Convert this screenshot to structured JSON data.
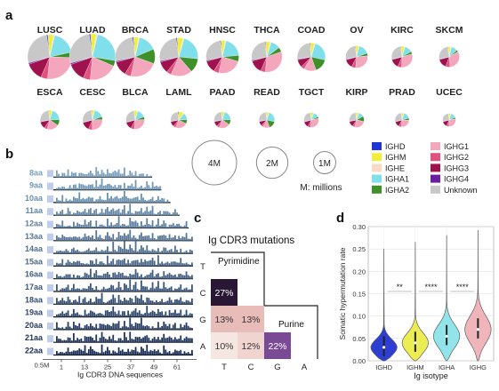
{
  "panels": {
    "a": "a",
    "b": "b",
    "c": "c",
    "d": "d"
  },
  "colors": {
    "IGHD": "#1f35d6",
    "IGHM": "#f0ee3a",
    "IGHE": "#f7d9c4",
    "IGHA1": "#7fe0ec",
    "IGHA2": "#3f8f2a",
    "IGHG1": "#f4a6bd",
    "IGHG2": "#e0527f",
    "IGHG3": "#a0124e",
    "IGHG4": "#6a1fa3",
    "Unknown": "#c8c8c8"
  },
  "panel_a": {
    "row1": [
      {
        "name": "LUSC",
        "size": 4.0,
        "fracs": {
          "IGHD": 0.01,
          "IGHM": 0.04,
          "IGHE": 0.01,
          "IGHA1": 0.18,
          "IGHA2": 0.04,
          "IGHG1": 0.26,
          "IGHG2": 0.05,
          "IGHG3": 0.13,
          "IGHG4": 0.01,
          "Unknown": 0.27
        }
      },
      {
        "name": "LUAD",
        "size": 4.3,
        "fracs": {
          "IGHD": 0.01,
          "IGHM": 0.04,
          "IGHE": 0.01,
          "IGHA1": 0.24,
          "IGHA2": 0.04,
          "IGHG1": 0.2,
          "IGHG2": 0.05,
          "IGHG3": 0.13,
          "IGHG4": 0.01,
          "Unknown": 0.27
        }
      },
      {
        "name": "BRCA",
        "size": 3.2,
        "fracs": {
          "IGHD": 0.01,
          "IGHM": 0.04,
          "IGHE": 0.01,
          "IGHA1": 0.15,
          "IGHA2": 0.12,
          "IGHG1": 0.23,
          "IGHG2": 0.05,
          "IGHG3": 0.12,
          "IGHG4": 0.01,
          "Unknown": 0.26
        }
      },
      {
        "name": "STAD",
        "size": 3.0,
        "fracs": {
          "IGHD": 0.01,
          "IGHM": 0.05,
          "IGHE": 0.01,
          "IGHA1": 0.22,
          "IGHA2": 0.12,
          "IGHG1": 0.18,
          "IGHG2": 0.04,
          "IGHG3": 0.1,
          "IGHG4": 0.01,
          "Unknown": 0.26
        }
      },
      {
        "name": "HNSC",
        "size": 2.2,
        "fracs": {
          "IGHD": 0.01,
          "IGHM": 0.04,
          "IGHE": 0.01,
          "IGHA1": 0.2,
          "IGHA2": 0.06,
          "IGHG1": 0.24,
          "IGHG2": 0.05,
          "IGHG3": 0.12,
          "IGHG4": 0.01,
          "Unknown": 0.26
        }
      },
      {
        "name": "THCA",
        "size": 1.9,
        "fracs": {
          "IGHD": 0.01,
          "IGHM": 0.05,
          "IGHE": 0.01,
          "IGHA1": 0.1,
          "IGHA2": 0.05,
          "IGHG1": 0.32,
          "IGHG2": 0.05,
          "IGHG3": 0.14,
          "IGHG4": 0.01,
          "Unknown": 0.26
        }
      },
      {
        "name": "COAD",
        "size": 1.6,
        "fracs": {
          "IGHD": 0.01,
          "IGHM": 0.05,
          "IGHE": 0.01,
          "IGHA1": 0.24,
          "IGHA2": 0.16,
          "IGHG1": 0.14,
          "IGHG2": 0.04,
          "IGHG3": 0.09,
          "IGHG4": 0.01,
          "Unknown": 0.25
        }
      },
      {
        "name": "OV",
        "size": 1.0,
        "fracs": {
          "IGHD": 0.01,
          "IGHM": 0.04,
          "IGHE": 0.01,
          "IGHA1": 0.16,
          "IGHA2": 0.04,
          "IGHG1": 0.28,
          "IGHG2": 0.06,
          "IGHG3": 0.13,
          "IGHG4": 0.01,
          "Unknown": 0.26
        }
      },
      {
        "name": "KIRC",
        "size": 0.9,
        "fracs": {
          "IGHD": 0.01,
          "IGHM": 0.05,
          "IGHE": 0.01,
          "IGHA1": 0.12,
          "IGHA2": 0.04,
          "IGHG1": 0.3,
          "IGHG2": 0.06,
          "IGHG3": 0.14,
          "IGHG4": 0.01,
          "Unknown": 0.26
        }
      },
      {
        "name": "SKCM",
        "size": 0.85,
        "fracs": {
          "IGHD": 0.01,
          "IGHM": 0.04,
          "IGHE": 0.01,
          "IGHA1": 0.1,
          "IGHA2": 0.03,
          "IGHG1": 0.32,
          "IGHG2": 0.07,
          "IGHG3": 0.15,
          "IGHG4": 0.01,
          "Unknown": 0.26
        }
      }
    ],
    "row2": [
      {
        "name": "ESCA",
        "size": 0.75,
        "fracs": {
          "IGHD": 0.01,
          "IGHM": 0.05,
          "IGHE": 0.01,
          "IGHA1": 0.2,
          "IGHA2": 0.1,
          "IGHG1": 0.2,
          "IGHG2": 0.05,
          "IGHG3": 0.12,
          "IGHG4": 0.01,
          "Unknown": 0.25
        }
      },
      {
        "name": "CESC",
        "size": 0.8,
        "fracs": {
          "IGHD": 0.01,
          "IGHM": 0.04,
          "IGHE": 0.01,
          "IGHA1": 0.16,
          "IGHA2": 0.05,
          "IGHG1": 0.26,
          "IGHG2": 0.06,
          "IGHG3": 0.14,
          "IGHG4": 0.01,
          "Unknown": 0.26
        }
      },
      {
        "name": "BLCA",
        "size": 0.7,
        "fracs": {
          "IGHD": 0.01,
          "IGHM": 0.05,
          "IGHE": 0.01,
          "IGHA1": 0.15,
          "IGHA2": 0.05,
          "IGHG1": 0.27,
          "IGHG2": 0.06,
          "IGHG3": 0.13,
          "IGHG4": 0.01,
          "Unknown": 0.26
        }
      },
      {
        "name": "LAML",
        "size": 0.55,
        "fracs": {
          "IGHD": 0.02,
          "IGHM": 0.1,
          "IGHE": 0.01,
          "IGHA1": 0.14,
          "IGHA2": 0.08,
          "IGHG1": 0.24,
          "IGHG2": 0.05,
          "IGHG3": 0.1,
          "IGHG4": 0.01,
          "Unknown": 0.25
        }
      },
      {
        "name": "PAAD",
        "size": 0.55,
        "fracs": {
          "IGHD": 0.01,
          "IGHM": 0.05,
          "IGHE": 0.01,
          "IGHA1": 0.2,
          "IGHA2": 0.1,
          "IGHG1": 0.22,
          "IGHG2": 0.05,
          "IGHG3": 0.1,
          "IGHG4": 0.01,
          "Unknown": 0.25
        }
      },
      {
        "name": "READ",
        "size": 0.5,
        "fracs": {
          "IGHD": 0.01,
          "IGHM": 0.05,
          "IGHE": 0.01,
          "IGHA1": 0.24,
          "IGHA2": 0.16,
          "IGHG1": 0.14,
          "IGHG2": 0.04,
          "IGHG3": 0.09,
          "IGHG4": 0.01,
          "Unknown": 0.25
        }
      },
      {
        "name": "TGCT",
        "size": 0.45,
        "fracs": {
          "IGHD": 0.01,
          "IGHM": 0.06,
          "IGHE": 0.01,
          "IGHA1": 0.12,
          "IGHA2": 0.04,
          "IGHG1": 0.3,
          "IGHG2": 0.06,
          "IGHG3": 0.13,
          "IGHG4": 0.01,
          "Unknown": 0.26
        }
      },
      {
        "name": "KIRP",
        "size": 0.45,
        "fracs": {
          "IGHD": 0.01,
          "IGHM": 0.05,
          "IGHE": 0.01,
          "IGHA1": 0.12,
          "IGHA2": 0.12,
          "IGHG1": 0.26,
          "IGHG2": 0.05,
          "IGHG3": 0.12,
          "IGHG4": 0.01,
          "Unknown": 0.25
        }
      },
      {
        "name": "PRAD",
        "size": 0.4,
        "fracs": {
          "IGHD": 0.01,
          "IGHM": 0.05,
          "IGHE": 0.01,
          "IGHA1": 0.16,
          "IGHA2": 0.05,
          "IGHG1": 0.26,
          "IGHG2": 0.06,
          "IGHG3": 0.13,
          "IGHG4": 0.01,
          "Unknown": 0.26
        }
      },
      {
        "name": "UCEC",
        "size": 0.35,
        "fracs": {
          "IGHD": 0.01,
          "IGHM": 0.05,
          "IGHE": 0.01,
          "IGHA1": 0.14,
          "IGHA2": 0.04,
          "IGHG1": 0.28,
          "IGHG2": 0.06,
          "IGHG3": 0.14,
          "IGHG4": 0.01,
          "Unknown": 0.26
        }
      }
    ],
    "size_legend": [
      {
        "label": "4M",
        "size": 4
      },
      {
        "label": "2M",
        "size": 2
      },
      {
        "label": "1M",
        "size": 1
      }
    ],
    "size_note": "M: millions",
    "legend_col1": [
      "IGHD",
      "IGHM",
      "IGHE",
      "IGHA1",
      "IGHA2"
    ],
    "legend_col2": [
      "IGHG1",
      "IGHG2",
      "IGHG3",
      "IGHG4",
      "Unknown"
    ]
  },
  "panel_b": {
    "rows": [
      "8aa",
      "9aa",
      "10aa",
      "11aa",
      "12aa",
      "13aa",
      "14aa",
      "15aa",
      "16aa",
      "17aa",
      "18aa",
      "19aa",
      "20aa",
      "21aa",
      "22aa"
    ],
    "xticks": [
      "1",
      "13",
      "25",
      "37",
      "49",
      "61"
    ],
    "scale_label": "0.5M",
    "xlabel": "Ig CDR3 DNA sequences"
  },
  "panel_c": {
    "title": "Ig CDR3 mutations",
    "pyrimidine": "Pyrimidine",
    "purine": "Purine",
    "row_labels": [
      "T",
      "C",
      "G",
      "A"
    ],
    "col_labels": [
      "T",
      "C",
      "G",
      "A"
    ],
    "cells": [
      {
        "row": 1,
        "col": 0,
        "label": "27%",
        "value": 27
      },
      {
        "row": 2,
        "col": 0,
        "label": "13%",
        "value": 13
      },
      {
        "row": 2,
        "col": 1,
        "label": "13%",
        "value": 13
      },
      {
        "row": 3,
        "col": 0,
        "label": "10%",
        "value": 10
      },
      {
        "row": 3,
        "col": 1,
        "label": "12%",
        "value": 12
      },
      {
        "row": 3,
        "col": 2,
        "label": "22%",
        "value": 22
      }
    ]
  },
  "chart_data": {
    "type": "violin",
    "categories": [
      "IGHD",
      "IGHM",
      "IGHA",
      "IGHG"
    ],
    "medians": [
      0.03,
      0.04,
      0.055,
      0.07
    ],
    "xlabel": "Ig isotype",
    "ylabel": "Somatic hypermutation rate",
    "ylim": [
      0,
      0.3
    ],
    "yticks": [
      "0.00",
      "0.05",
      "0.10",
      "0.15",
      "0.20",
      "0.25",
      "0.30"
    ],
    "significance": [
      {
        "from": 0,
        "to": 1,
        "label": "**"
      },
      {
        "from": 1,
        "to": 2,
        "label": "****"
      },
      {
        "from": 2,
        "to": 3,
        "label": "****"
      }
    ],
    "colors": [
      "#2334d0",
      "#ecec4a",
      "#8de3ea",
      "#f0b0b8"
    ]
  }
}
